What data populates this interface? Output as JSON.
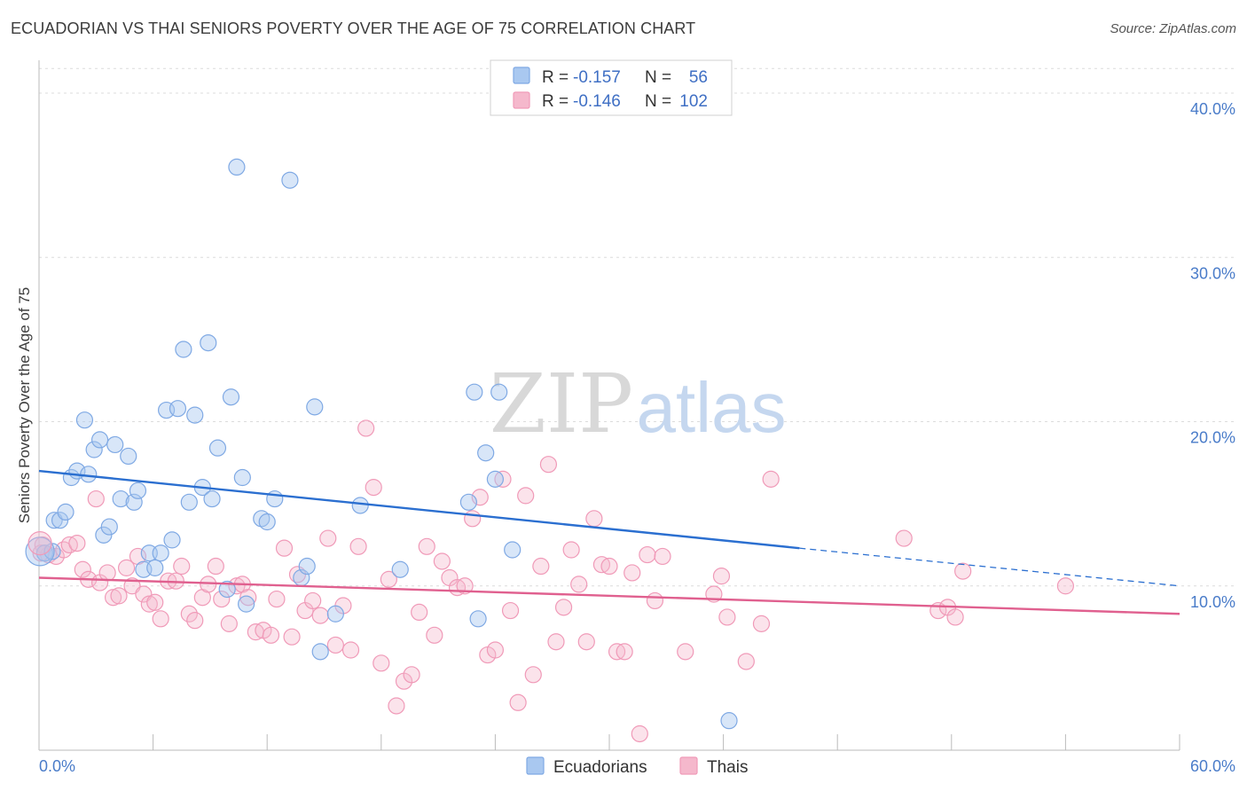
{
  "header": {
    "title": "ECUADORIAN VS THAI SENIORS POVERTY OVER THE AGE OF 75 CORRELATION CHART",
    "source": "Source: ZipAtlas.com"
  },
  "watermark": {
    "zip": "ZIP",
    "atlas": "atlas"
  },
  "legend": {
    "rows": [
      {
        "r_label": "R =",
        "r_value": "-0.157",
        "n_label": "N =",
        "n_value": "56",
        "color": "#a9c8f0"
      },
      {
        "r_label": "R =",
        "r_value": "-0.146",
        "n_label": "N =",
        "n_value": "102",
        "color": "#f5b8cc"
      }
    ]
  },
  "bottom_legend": {
    "items": [
      {
        "label": "Ecuadorians",
        "color": "#a9c8f0"
      },
      {
        "label": "Thais",
        "color": "#f5b8cc"
      }
    ]
  },
  "chart_data": {
    "type": "scatter",
    "ylabel": "Seniors Poverty Over the Age of 75",
    "xlim": [
      0,
      60
    ],
    "ylim": [
      0,
      42
    ],
    "x_tick_labels": [
      "0.0%",
      "60.0%"
    ],
    "y_ticks": [
      10,
      20,
      30,
      40
    ],
    "y_tick_labels": [
      "10.0%",
      "20.0%",
      "30.0%",
      "40.0%"
    ],
    "grid": "horizontal dashed",
    "legend_position": "top-center",
    "series": [
      {
        "name": "Ecuadorians",
        "color": "#7fa9e4",
        "trend_color": "#2b6fd0",
        "trend": {
          "x_start": 0,
          "y_start": 17.0,
          "x_solid_end": 40,
          "y_solid_end": 12.3,
          "x_end": 60,
          "y_end": 10.0
        },
        "points": [
          [
            0.3,
            12.0
          ],
          [
            0.7,
            12.1
          ],
          [
            0.8,
            14.0
          ],
          [
            1.1,
            14.0
          ],
          [
            1.4,
            14.5
          ],
          [
            1.7,
            16.6
          ],
          [
            2.0,
            17.0
          ],
          [
            2.4,
            20.1
          ],
          [
            2.6,
            16.8
          ],
          [
            2.9,
            18.3
          ],
          [
            3.2,
            18.9
          ],
          [
            3.4,
            13.1
          ],
          [
            3.7,
            13.6
          ],
          [
            4.0,
            18.6
          ],
          [
            4.3,
            15.3
          ],
          [
            4.7,
            17.9
          ],
          [
            5.0,
            15.1
          ],
          [
            5.2,
            15.8
          ],
          [
            5.5,
            11.0
          ],
          [
            5.8,
            12.0
          ],
          [
            6.1,
            11.1
          ],
          [
            6.4,
            12.0
          ],
          [
            7.0,
            12.8
          ],
          [
            6.7,
            20.7
          ],
          [
            7.3,
            20.8
          ],
          [
            7.6,
            24.4
          ],
          [
            7.9,
            15.1
          ],
          [
            8.2,
            20.4
          ],
          [
            8.6,
            16.0
          ],
          [
            8.9,
            24.8
          ],
          [
            9.1,
            15.3
          ],
          [
            9.4,
            18.4
          ],
          [
            9.9,
            9.8
          ],
          [
            10.1,
            21.5
          ],
          [
            10.4,
            35.5
          ],
          [
            10.7,
            16.6
          ],
          [
            10.9,
            8.9
          ],
          [
            11.7,
            14.1
          ],
          [
            12.0,
            13.9
          ],
          [
            12.4,
            15.3
          ],
          [
            13.2,
            34.7
          ],
          [
            13.8,
            10.5
          ],
          [
            14.1,
            11.2
          ],
          [
            14.5,
            20.9
          ],
          [
            14.8,
            6.0
          ],
          [
            15.6,
            8.3
          ],
          [
            16.9,
            14.9
          ],
          [
            19.0,
            11.0
          ],
          [
            22.6,
            15.1
          ],
          [
            22.9,
            21.8
          ],
          [
            23.1,
            8.0
          ],
          [
            23.5,
            18.1
          ],
          [
            24.0,
            16.5
          ],
          [
            24.2,
            21.8
          ],
          [
            24.9,
            12.2
          ],
          [
            36.3,
            1.8
          ]
        ]
      },
      {
        "name": "Thais",
        "color": "#f09ab8",
        "trend_color": "#e0608f",
        "trend": {
          "x_start": 0,
          "y_start": 10.5,
          "x_solid_end": 60,
          "y_solid_end": 8.3,
          "x_end": 60,
          "y_end": 8.3
        },
        "points": [
          [
            0.2,
            12.5
          ],
          [
            0.5,
            11.9
          ],
          [
            0.9,
            11.8
          ],
          [
            1.3,
            12.2
          ],
          [
            1.6,
            12.5
          ],
          [
            2.0,
            12.6
          ],
          [
            2.3,
            11.0
          ],
          [
            2.6,
            10.4
          ],
          [
            3.0,
            15.3
          ],
          [
            3.2,
            10.2
          ],
          [
            3.6,
            10.8
          ],
          [
            3.9,
            9.3
          ],
          [
            4.2,
            9.4
          ],
          [
            4.6,
            11.1
          ],
          [
            4.9,
            10.0
          ],
          [
            5.2,
            11.8
          ],
          [
            5.5,
            9.5
          ],
          [
            5.8,
            8.9
          ],
          [
            6.1,
            9.0
          ],
          [
            6.4,
            8.0
          ],
          [
            6.8,
            10.3
          ],
          [
            7.2,
            10.3
          ],
          [
            7.5,
            11.2
          ],
          [
            7.9,
            8.3
          ],
          [
            8.2,
            7.9
          ],
          [
            8.6,
            9.3
          ],
          [
            8.9,
            10.1
          ],
          [
            9.3,
            11.2
          ],
          [
            9.6,
            9.2
          ],
          [
            10.0,
            7.7
          ],
          [
            10.4,
            10.0
          ],
          [
            10.7,
            10.1
          ],
          [
            11.0,
            9.3
          ],
          [
            11.4,
            7.2
          ],
          [
            11.8,
            7.3
          ],
          [
            12.2,
            7.0
          ],
          [
            12.5,
            9.2
          ],
          [
            12.9,
            12.3
          ],
          [
            13.3,
            6.9
          ],
          [
            13.6,
            10.7
          ],
          [
            14.0,
            8.5
          ],
          [
            14.4,
            9.1
          ],
          [
            14.8,
            8.2
          ],
          [
            15.2,
            12.9
          ],
          [
            15.6,
            6.4
          ],
          [
            16.0,
            8.8
          ],
          [
            16.4,
            6.1
          ],
          [
            16.8,
            12.4
          ],
          [
            17.2,
            19.6
          ],
          [
            17.6,
            16.0
          ],
          [
            18.0,
            5.3
          ],
          [
            18.4,
            10.4
          ],
          [
            18.8,
            2.7
          ],
          [
            19.2,
            4.2
          ],
          [
            19.6,
            4.6
          ],
          [
            20.0,
            8.4
          ],
          [
            20.4,
            12.4
          ],
          [
            20.8,
            7.0
          ],
          [
            21.2,
            11.5
          ],
          [
            21.6,
            10.5
          ],
          [
            22.0,
            9.9
          ],
          [
            22.4,
            10.0
          ],
          [
            22.8,
            14.1
          ],
          [
            23.2,
            15.4
          ],
          [
            23.6,
            5.8
          ],
          [
            24.0,
            6.1
          ],
          [
            24.4,
            16.5
          ],
          [
            24.8,
            8.5
          ],
          [
            25.2,
            2.9
          ],
          [
            25.6,
            15.5
          ],
          [
            26.0,
            4.6
          ],
          [
            26.4,
            11.2
          ],
          [
            26.8,
            17.4
          ],
          [
            27.2,
            6.6
          ],
          [
            27.6,
            8.7
          ],
          [
            28.0,
            12.2
          ],
          [
            28.4,
            10.1
          ],
          [
            28.8,
            6.6
          ],
          [
            29.2,
            14.1
          ],
          [
            29.6,
            11.3
          ],
          [
            30.0,
            11.2
          ],
          [
            30.4,
            6.0
          ],
          [
            30.8,
            6.0
          ],
          [
            31.2,
            10.8
          ],
          [
            31.6,
            1.0
          ],
          [
            32.0,
            11.9
          ],
          [
            32.4,
            9.1
          ],
          [
            32.8,
            11.8
          ],
          [
            34.0,
            6.0
          ],
          [
            35.5,
            9.5
          ],
          [
            35.9,
            10.6
          ],
          [
            36.2,
            8.1
          ],
          [
            37.2,
            5.4
          ],
          [
            38.0,
            7.7
          ],
          [
            38.5,
            16.5
          ],
          [
            45.5,
            12.9
          ],
          [
            47.3,
            8.5
          ],
          [
            47.8,
            8.7
          ],
          [
            48.2,
            8.1
          ],
          [
            48.6,
            10.9
          ],
          [
            54.0,
            10.0
          ],
          [
            0.1,
            12.0
          ]
        ]
      }
    ]
  }
}
